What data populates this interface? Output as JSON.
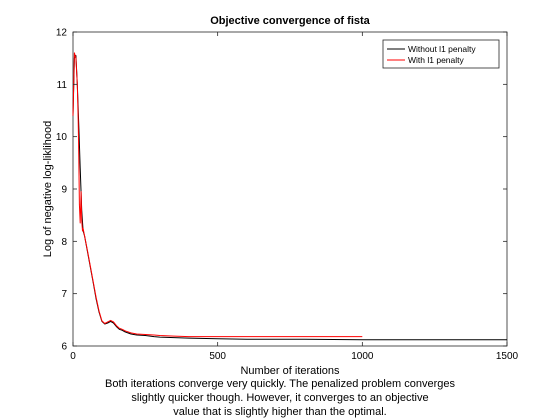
{
  "chart_data": {
    "type": "line",
    "title": "Objective convergence of fista",
    "xlabel": "Number of iterations",
    "ylabel": "Log of negative log-liklihood",
    "xlim": [
      0,
      1500
    ],
    "ylim": [
      6,
      12
    ],
    "xticks": [
      "0",
      "500",
      "1000",
      "1500"
    ],
    "yticks": [
      "6",
      "7",
      "8",
      "9",
      "10",
      "11",
      "12"
    ],
    "grid": false,
    "legend_position": "top-right",
    "series": [
      {
        "name": "Without l1 penalty",
        "color": "#000000",
        "x": [
          0,
          5,
          10,
          15,
          20,
          25,
          30,
          35,
          40,
          50,
          60,
          70,
          80,
          90,
          100,
          110,
          120,
          130,
          140,
          150,
          160,
          170,
          180,
          200,
          220,
          250,
          280,
          300,
          350,
          400,
          500,
          600,
          800,
          1000,
          1200,
          1500
        ],
        "y": [
          10.4,
          11.5,
          11.55,
          11.0,
          10.2,
          9.4,
          8.6,
          8.2,
          8.1,
          7.8,
          7.5,
          7.2,
          6.9,
          6.65,
          6.47,
          6.42,
          6.44,
          6.47,
          6.44,
          6.37,
          6.32,
          6.3,
          6.27,
          6.23,
          6.21,
          6.2,
          6.18,
          6.17,
          6.16,
          6.15,
          6.14,
          6.13,
          6.13,
          6.12,
          6.12,
          6.12
        ]
      },
      {
        "name": "With l1 penalty",
        "color": "#ff0000",
        "x": [
          0,
          5,
          10,
          15,
          18,
          20,
          22,
          25,
          28,
          30,
          33,
          35,
          40,
          50,
          60,
          70,
          80,
          90,
          100,
          110,
          120,
          130,
          140,
          150,
          160,
          170,
          180,
          200,
          220,
          250,
          280,
          300,
          350,
          400,
          500,
          600,
          800,
          1000
        ],
        "y": [
          10.4,
          11.6,
          11.5,
          11.0,
          10.3,
          9.6,
          8.7,
          8.35,
          8.95,
          8.4,
          8.2,
          8.25,
          8.1,
          7.82,
          7.52,
          7.22,
          6.93,
          6.67,
          6.48,
          6.43,
          6.46,
          6.49,
          6.46,
          6.39,
          6.34,
          6.32,
          6.29,
          6.25,
          6.23,
          6.22,
          6.21,
          6.2,
          6.19,
          6.18,
          6.18,
          6.18,
          6.18,
          6.18
        ]
      }
    ]
  },
  "caption": {
    "line1": "Both iterations converge very quickly. The penalized problem converges",
    "line2": "slightly quicker though. However, it converges to an objective",
    "line3": "value that is slightly higher than the optimal."
  }
}
